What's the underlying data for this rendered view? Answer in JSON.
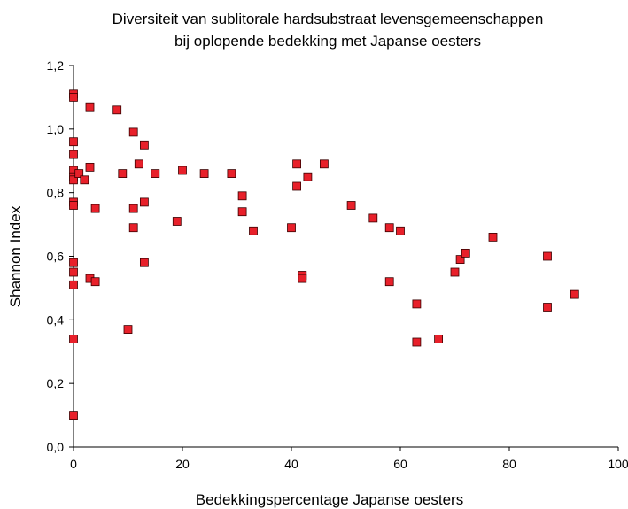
{
  "chart_data": {
    "type": "scatter",
    "title_line1": "Diversiteit van sublitorale hardsubstraat levensgemeenschappen",
    "title_line2": "bij oplopende bedekking met Japanse oesters",
    "xlabel": "Bedekkingspercentage Japanse oesters",
    "ylabel": "Shannon Index",
    "xlim": [
      0,
      100
    ],
    "ylim": [
      0,
      1.2
    ],
    "x_ticks": [
      "0",
      "20",
      "40",
      "60",
      "80",
      "100"
    ],
    "y_ticks": [
      "0,0",
      "0,2",
      "0,4",
      "0,6",
      "0,8",
      "1,0",
      "1,2"
    ],
    "grid": false,
    "legend": false,
    "marker_color": "#e8202a",
    "marker_edge_color": "#3a0000",
    "points": [
      {
        "x": 0,
        "y": 1.11
      },
      {
        "x": 0,
        "y": 1.1
      },
      {
        "x": 0,
        "y": 0.96
      },
      {
        "x": 0,
        "y": 0.92
      },
      {
        "x": 0,
        "y": 0.87
      },
      {
        "x": 0,
        "y": 0.85
      },
      {
        "x": 0,
        "y": 0.84
      },
      {
        "x": 0,
        "y": 0.77
      },
      {
        "x": 0,
        "y": 0.76
      },
      {
        "x": 0,
        "y": 0.58
      },
      {
        "x": 0,
        "y": 0.55
      },
      {
        "x": 0,
        "y": 0.51
      },
      {
        "x": 0,
        "y": 0.34
      },
      {
        "x": 0,
        "y": 0.1
      },
      {
        "x": 1,
        "y": 0.86
      },
      {
        "x": 2,
        "y": 0.84
      },
      {
        "x": 3,
        "y": 1.07
      },
      {
        "x": 3,
        "y": 0.88
      },
      {
        "x": 3,
        "y": 0.53
      },
      {
        "x": 4,
        "y": 0.75
      },
      {
        "x": 4,
        "y": 0.52
      },
      {
        "x": 8,
        "y": 1.06
      },
      {
        "x": 9,
        "y": 0.86
      },
      {
        "x": 10,
        "y": 0.37
      },
      {
        "x": 11,
        "y": 0.99
      },
      {
        "x": 11,
        "y": 0.75
      },
      {
        "x": 11,
        "y": 0.69
      },
      {
        "x": 12,
        "y": 0.89
      },
      {
        "x": 13,
        "y": 0.95
      },
      {
        "x": 13,
        "y": 0.77
      },
      {
        "x": 13,
        "y": 0.58
      },
      {
        "x": 15,
        "y": 0.86
      },
      {
        "x": 19,
        "y": 0.71
      },
      {
        "x": 20,
        "y": 0.87
      },
      {
        "x": 24,
        "y": 0.86
      },
      {
        "x": 29,
        "y": 0.86
      },
      {
        "x": 31,
        "y": 0.79
      },
      {
        "x": 31,
        "y": 0.74
      },
      {
        "x": 33,
        "y": 0.68
      },
      {
        "x": 40,
        "y": 0.69
      },
      {
        "x": 41,
        "y": 0.89
      },
      {
        "x": 41,
        "y": 0.82
      },
      {
        "x": 42,
        "y": 0.54
      },
      {
        "x": 42,
        "y": 0.53
      },
      {
        "x": 43,
        "y": 0.85
      },
      {
        "x": 46,
        "y": 0.89
      },
      {
        "x": 51,
        "y": 0.76
      },
      {
        "x": 55,
        "y": 0.72
      },
      {
        "x": 58,
        "y": 0.69
      },
      {
        "x": 58,
        "y": 0.52
      },
      {
        "x": 60,
        "y": 0.68
      },
      {
        "x": 63,
        "y": 0.45
      },
      {
        "x": 63,
        "y": 0.33
      },
      {
        "x": 67,
        "y": 0.34
      },
      {
        "x": 70,
        "y": 0.55
      },
      {
        "x": 71,
        "y": 0.59
      },
      {
        "x": 72,
        "y": 0.61
      },
      {
        "x": 77,
        "y": 0.66
      },
      {
        "x": 87,
        "y": 0.6
      },
      {
        "x": 87,
        "y": 0.44
      },
      {
        "x": 92,
        "y": 0.48
      }
    ]
  }
}
